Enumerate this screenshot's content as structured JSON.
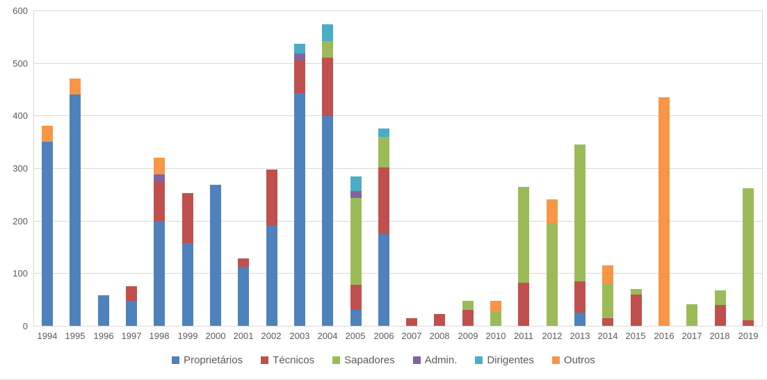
{
  "chart_data": {
    "type": "bar",
    "stacked": true,
    "title": "",
    "xlabel": "",
    "ylabel": "",
    "ylim": [
      0,
      600
    ],
    "yticks": [
      0,
      100,
      200,
      300,
      400,
      500,
      600
    ],
    "grid": true,
    "legend_position": "bottom",
    "categories": [
      "1994",
      "1995",
      "1996",
      "1997",
      "1998",
      "1999",
      "2000",
      "2001",
      "2002",
      "2003",
      "2004",
      "2005",
      "2006",
      "2007",
      "2008",
      "2009",
      "2010",
      "2011",
      "2012",
      "2013",
      "2014",
      "2015",
      "2016",
      "2017",
      "2018",
      "2019"
    ],
    "series": [
      {
        "name": "Proprietários",
        "color": "#4F81BD",
        "values": [
          350,
          440,
          58,
          48,
          198,
          158,
          268,
          112,
          190,
          443,
          400,
          30,
          175,
          0,
          0,
          0,
          0,
          0,
          0,
          25,
          0,
          0,
          0,
          0,
          0,
          0
        ]
      },
      {
        "name": "Técnicos",
        "color": "#C0504D",
        "values": [
          0,
          0,
          0,
          27,
          77,
          95,
          0,
          16,
          107,
          62,
          111,
          48,
          127,
          15,
          22,
          30,
          0,
          82,
          0,
          60,
          15,
          60,
          0,
          0,
          40,
          10
        ]
      },
      {
        "name": "Sapadores",
        "color": "#9BBB59",
        "values": [
          0,
          0,
          0,
          0,
          0,
          0,
          0,
          0,
          0,
          0,
          31,
          165,
          58,
          0,
          0,
          17,
          28,
          183,
          196,
          260,
          64,
          10,
          0,
          41,
          28,
          252
        ]
      },
      {
        "name": "Admin.",
        "color": "#8064A2",
        "values": [
          0,
          0,
          0,
          0,
          13,
          0,
          0,
          0,
          0,
          14,
          0,
          13,
          0,
          0,
          0,
          0,
          0,
          0,
          0,
          0,
          0,
          0,
          0,
          0,
          0,
          0
        ]
      },
      {
        "name": "Dirigentes",
        "color": "#4BACC6",
        "values": [
          0,
          0,
          0,
          0,
          0,
          0,
          0,
          0,
          0,
          18,
          32,
          28,
          16,
          0,
          0,
          0,
          0,
          0,
          0,
          0,
          0,
          0,
          0,
          0,
          0,
          0
        ]
      },
      {
        "name": "Outros",
        "color": "#F79646",
        "values": [
          30,
          30,
          0,
          0,
          32,
          0,
          0,
          0,
          0,
          0,
          0,
          0,
          0,
          0,
          0,
          0,
          20,
          0,
          44,
          0,
          36,
          0,
          435,
          0,
          0,
          0
        ]
      }
    ],
    "colors": {
      "gridline": "#d9d9d9",
      "axis_text": "#595959",
      "background": "#ffffff"
    }
  }
}
